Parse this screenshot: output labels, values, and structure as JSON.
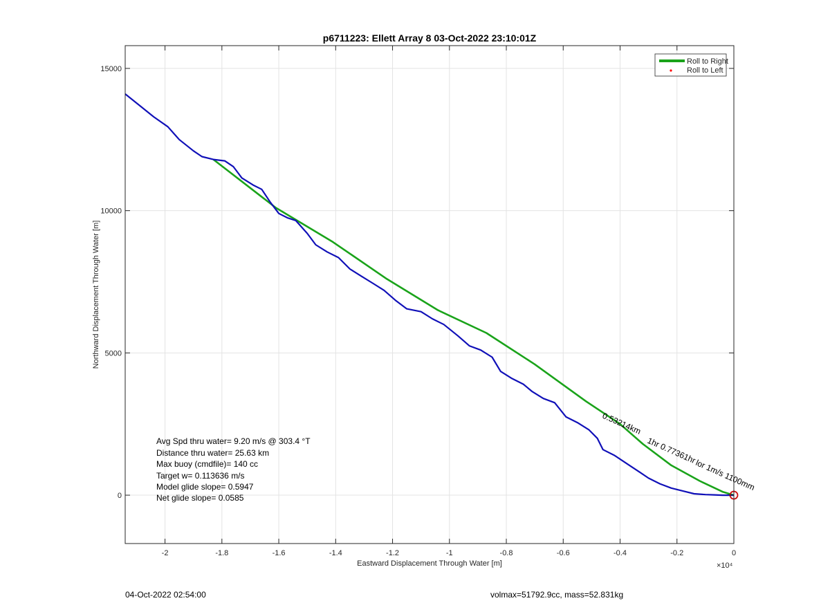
{
  "chart_data": {
    "type": "line",
    "title": "p6711223: Ellett Array 8 03-Oct-2022 23:10:01Z",
    "xlabel": "Eastward Displacement Through Water [m]",
    "ylabel": "Northward Displacement Through Water [m]",
    "x_exponent_label": "×10⁴",
    "xlim": [
      -21400,
      0
    ],
    "ylim": [
      -1700,
      15800
    ],
    "x_ticks": [
      -20000,
      -18000,
      -16000,
      -14000,
      -12000,
      -10000,
      -8000,
      -6000,
      -4000,
      -2000,
      0
    ],
    "x_tick_labels": [
      "-2",
      "-1.8",
      "-1.6",
      "-1.4",
      "-1.2",
      "-1",
      "-0.8",
      "-0.6",
      "-0.4",
      "-0.2",
      "0"
    ],
    "y_ticks": [
      0,
      5000,
      10000,
      15000
    ],
    "y_tick_labels": [
      "0",
      "5000",
      "10000",
      "15000"
    ],
    "grid": true,
    "legend_position": "top-right",
    "series": [
      {
        "name": "Roll to Right",
        "color": "#1aa31a",
        "style": "line",
        "x": [
          -18300,
          -16100,
          -14100,
          -12200,
          -10400,
          -8700,
          -7000,
          -5200,
          -4000,
          -3200,
          -2200,
          -1200,
          -400,
          0
        ],
        "y": [
          11800,
          10100,
          8900,
          7600,
          6500,
          5700,
          4600,
          3300,
          2500,
          1800,
          1050,
          500,
          120,
          0
        ]
      },
      {
        "name": "Roll to Left",
        "color": "#ff0000",
        "style": "marker",
        "x": [],
        "y": []
      },
      {
        "name": "",
        "color": "#1010b8",
        "style": "line",
        "x": [
          -21400,
          -20900,
          -20400,
          -19900,
          -19500,
          -19000,
          -18700,
          -18300,
          -17900,
          -17600,
          -17300,
          -16900,
          -16600,
          -16300,
          -16000,
          -15700,
          -15400,
          -15000,
          -14700,
          -14300,
          -13900,
          -13500,
          -13100,
          -12700,
          -12300,
          -11900,
          -11500,
          -11000,
          -10600,
          -10200,
          -9700,
          -9300,
          -8900,
          -8500,
          -8200,
          -7800,
          -7400,
          -7100,
          -6700,
          -6300,
          -5900,
          -5500,
          -5100,
          -4800,
          -4600,
          -4200,
          -3900,
          -3600,
          -3300,
          -3000,
          -2600,
          -2200,
          -1800,
          -1400,
          -1000,
          -700,
          -400,
          -200,
          0
        ],
        "y": [
          14100,
          13700,
          13300,
          12950,
          12500,
          12100,
          11900,
          11800,
          11750,
          11550,
          11150,
          10900,
          10750,
          10300,
          9900,
          9750,
          9650,
          9200,
          8800,
          8550,
          8350,
          7950,
          7700,
          7450,
          7200,
          6850,
          6550,
          6450,
          6200,
          6000,
          5600,
          5250,
          5100,
          4850,
          4350,
          4100,
          3900,
          3650,
          3400,
          3250,
          2750,
          2550,
          2300,
          2000,
          1600,
          1400,
          1200,
          1000,
          800,
          600,
          400,
          250,
          150,
          50,
          20,
          10,
          0,
          0,
          0
        ]
      }
    ],
    "annotations": [
      {
        "text": "0.53214km",
        "rotated": true
      },
      {
        "text": "1hr 0.77361hr",
        "rotated": true
      },
      {
        "text": "lor 1m/s 1100mm",
        "rotated": true
      }
    ],
    "stats_lines": [
      "Avg Spd thru water=  9.20 m/s @ 303.4 °T",
      "Distance thru water= 25.63 km",
      "Max buoy (cmdfile)= 140 cc",
      "Target w= 0.113636 m/s",
      "Model glide slope= 0.5947",
      "Net glide slope= 0.0585"
    ]
  },
  "footer": {
    "left": "04-Oct-2022 02:54:00",
    "right": "volmax=51792.9cc, mass=52.831kg"
  }
}
